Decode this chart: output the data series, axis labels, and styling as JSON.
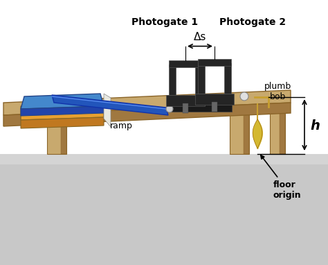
{
  "bg_color": "#ffffff",
  "floor_color": "#c8c8c8",
  "floor_top_color": "#d8d8d8",
  "table_top_color": "#c8a96e",
  "table_side_color": "#a07840",
  "table_dark_color": "#8a6428",
  "label_photogate1": "Photogate 1",
  "label_photogate2": "Photogate 2",
  "label_delta_s": "Δs",
  "label_ramp": "ramp",
  "label_plumb": "plumb\nbob",
  "label_h": "h",
  "label_floor": "floor\norigin",
  "text_color": "#000000",
  "arrow_color": "#000000",
  "book1_color": "#e8a030",
  "book2_color": "#4488cc",
  "book3_color": "#e8e8d8",
  "ramp_color": "#2255bb",
  "photogate_color": "#252525",
  "plumb_string_color": "#c8a030",
  "plumb_bob_color": "#d4b830",
  "ball_color": "#e0e0e0"
}
